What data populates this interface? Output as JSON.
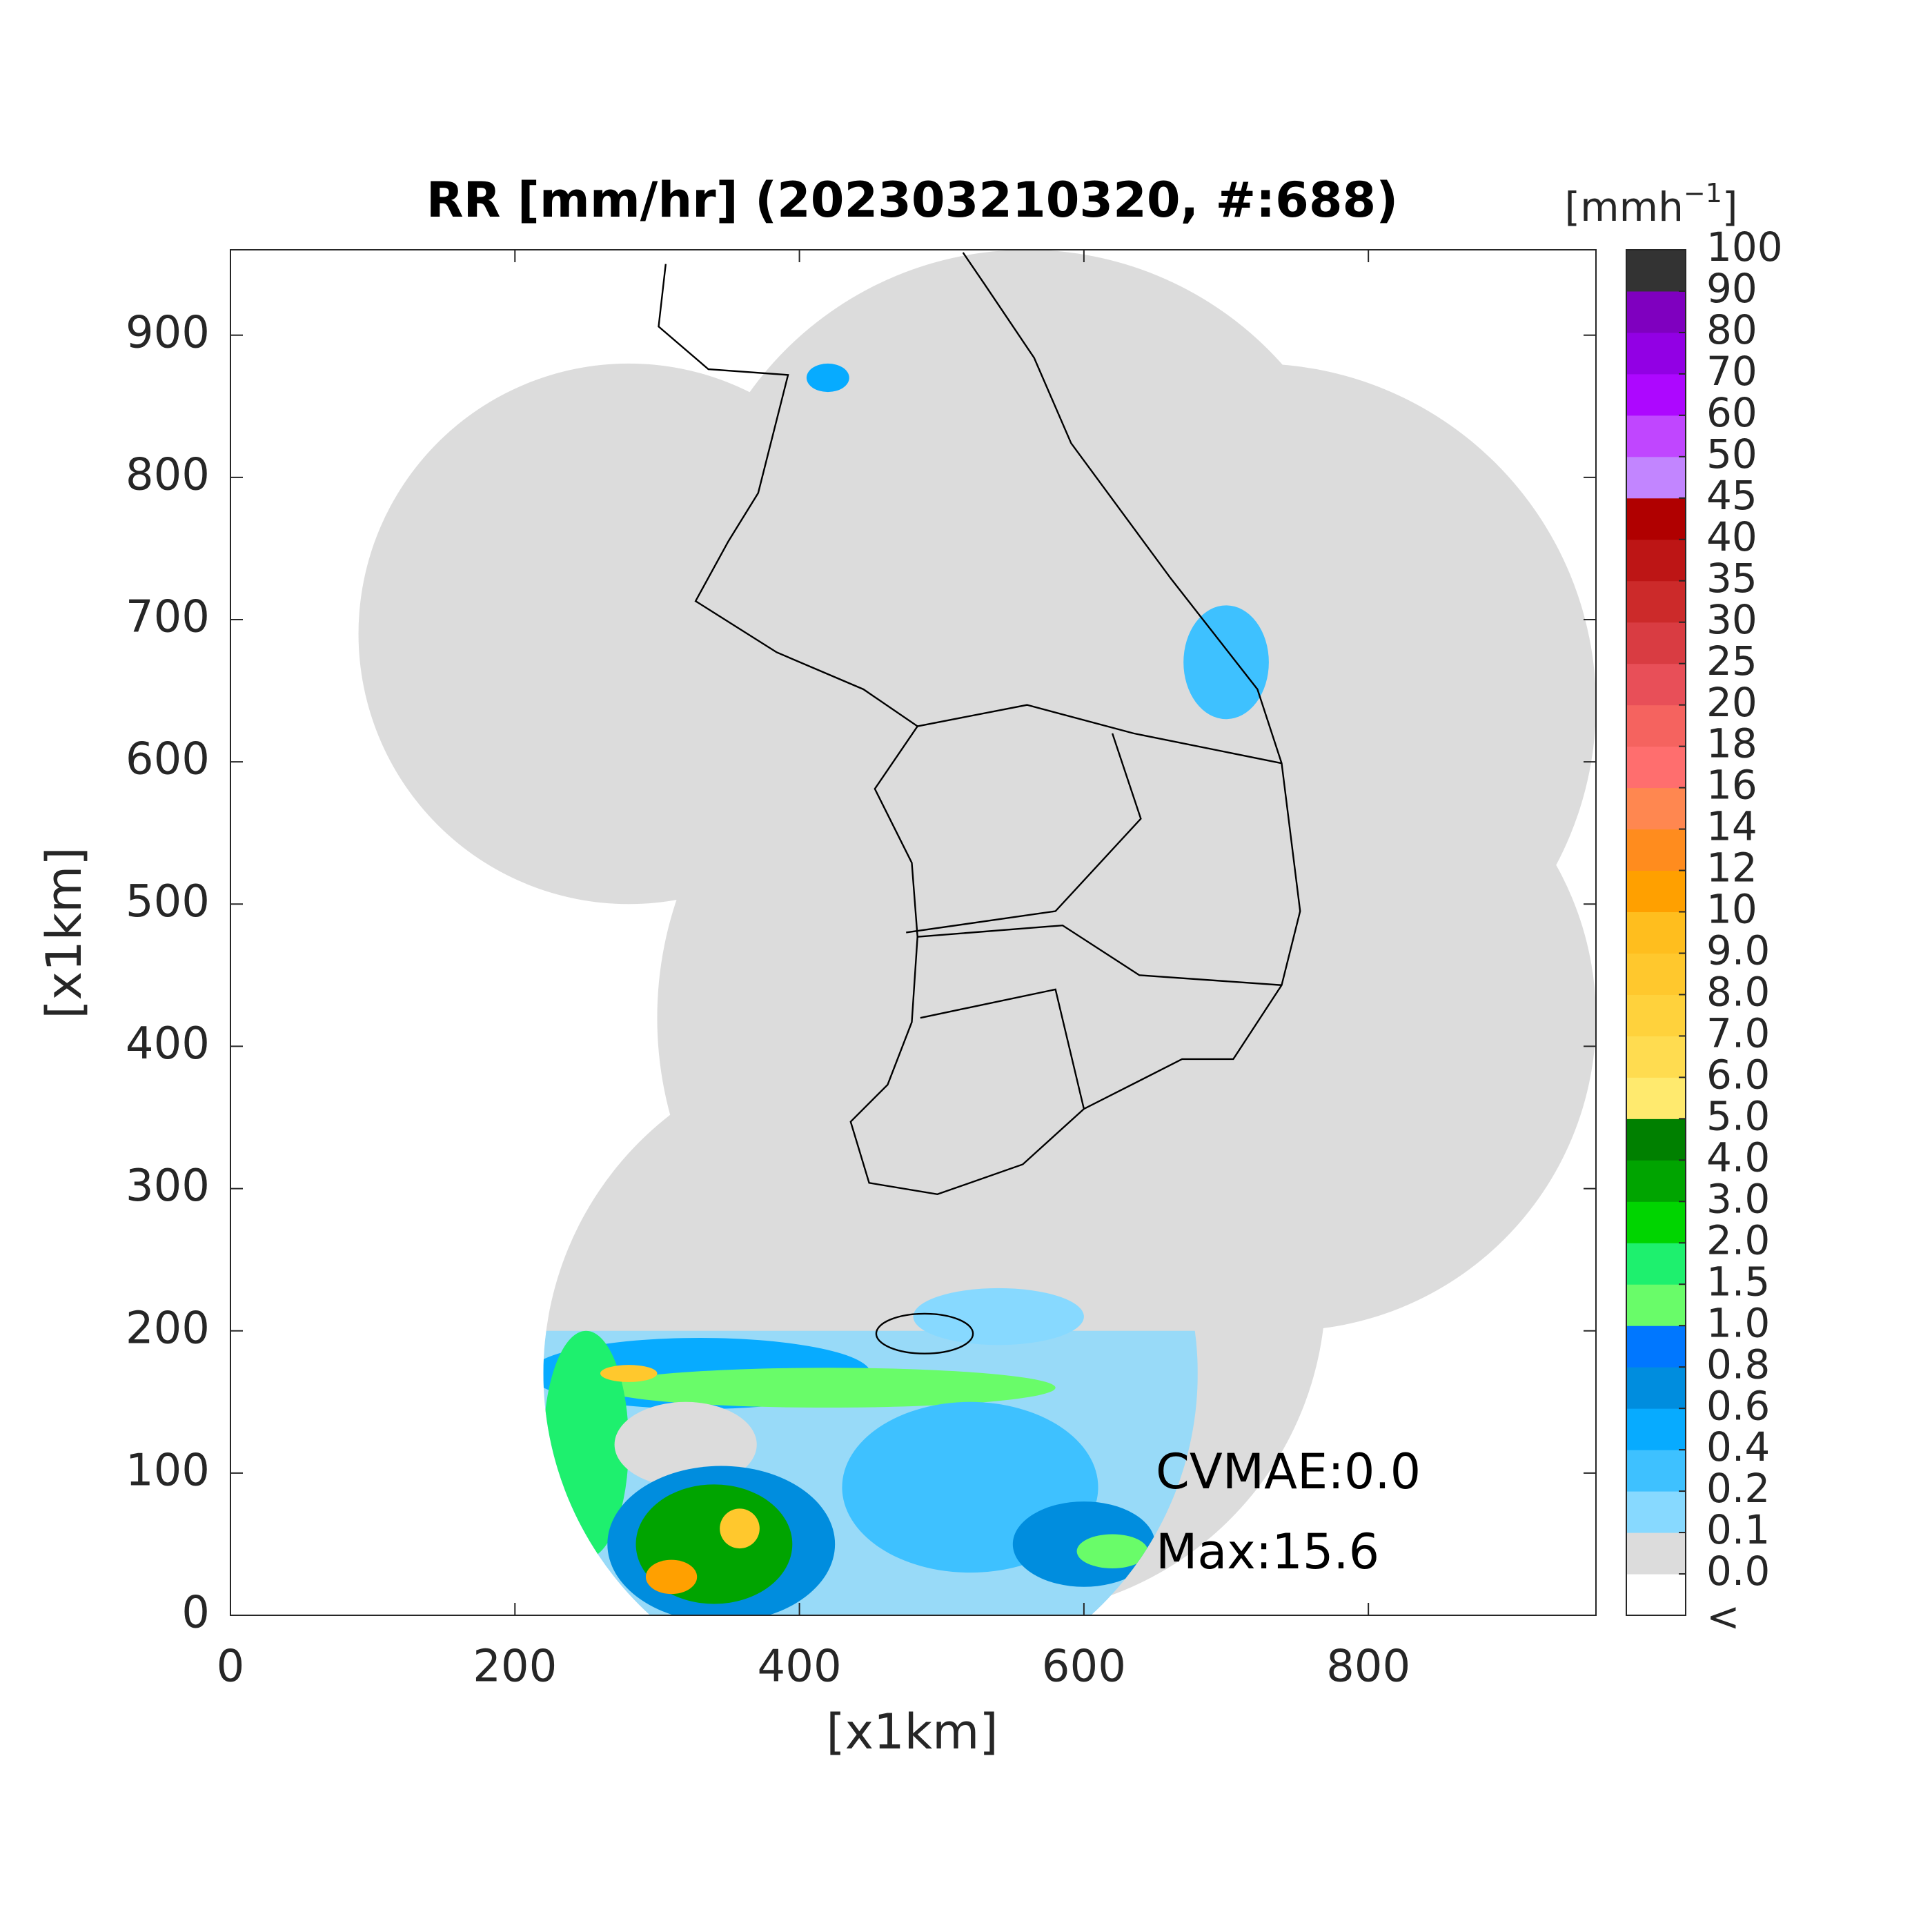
{
  "chart_data": {
    "type": "map",
    "title": "RR [mm/hr] (202303210320, #:688)",
    "xlabel": "[x1km]",
    "ylabel": "[x1km]",
    "xlim": [
      0,
      960
    ],
    "ylim": [
      0,
      960
    ],
    "xticks": [
      0,
      200,
      400,
      600,
      800
    ],
    "yticks": [
      0,
      100,
      200,
      300,
      400,
      500,
      600,
      700,
      800,
      900
    ],
    "annotations": [
      "CVMAE:0.0",
      "Max:15.6"
    ],
    "colorbar": {
      "label_parts": [
        "[mmh",
        "−1",
        "]"
      ],
      "below_label": "<",
      "ticks": [
        {
          "value": 0,
          "label": "0.0"
        },
        0.1,
        0.2,
        0.4,
        0.6,
        0.8,
        {
          "value": 1,
          "label": "1.0"
        },
        1.5,
        {
          "value": 2,
          "label": "2.0"
        },
        {
          "value": 3,
          "label": "3.0"
        },
        {
          "value": 4,
          "label": "4.0"
        },
        {
          "value": 5,
          "label": "5.0"
        },
        {
          "value": 6,
          "label": "6.0"
        },
        {
          "value": 7,
          "label": "7.0"
        },
        {
          "value": 8,
          "label": "8.0"
        },
        {
          "value": 9,
          "label": "9.0"
        },
        10,
        12,
        14,
        16,
        18,
        20,
        25,
        30,
        35,
        40,
        45,
        50,
        60,
        70,
        80,
        90,
        100
      ],
      "colors": [
        "#ffffff",
        "#dcdcdc",
        "#87d9ff",
        "#3ec1ff",
        "#07abff",
        "#008dde",
        "#0077ff",
        "#69fc69",
        "#1ef06e",
        "#00d500",
        "#00a400",
        "#008000",
        "#ffea6e",
        "#ffdc50",
        "#ffd23c",
        "#ffc82d",
        "#ffbe1e",
        "#ffa000",
        "#ff8c1e",
        "#ff8750",
        "#ff6e6e",
        "#f5635f",
        "#e84f58",
        "#d93c42",
        "#cc2a2a",
        "#bd1515",
        "#b00000",
        "#c285ff",
        "#c046ff",
        "#ad07ff",
        "#9200e4",
        "#7f00bf",
        "#333333"
      ]
    }
  }
}
